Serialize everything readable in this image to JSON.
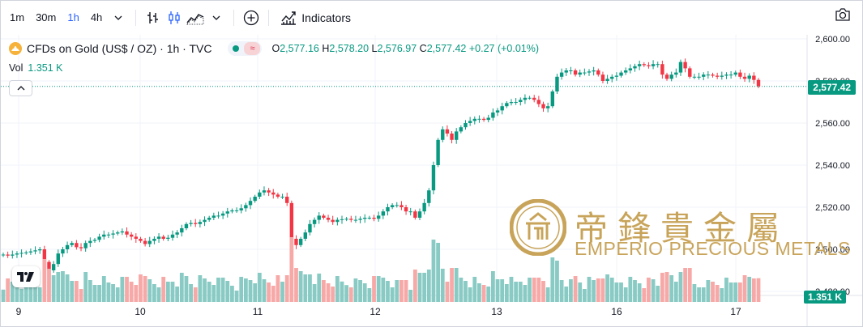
{
  "toolbar": {
    "timeframes": [
      "1m",
      "30m",
      "1h",
      "4h"
    ],
    "active_timeframe": "1h",
    "indicators_label": "Indicators"
  },
  "legend": {
    "symbol": "CFDs on Gold (US$ / OZ) · 1h · TVC",
    "open_label": "O",
    "open": "2,577.16",
    "high_label": "H",
    "high": "2,578.20",
    "low_label": "L",
    "low": "2,576.97",
    "close_label": "C",
    "close": "2,577.42",
    "change": "+0.27 (+0.01%)"
  },
  "volume": {
    "label": "Vol",
    "value": "1.351 K"
  },
  "price_axis": {
    "ticks": [
      "2,600.00",
      "2,580.00",
      "2,560.00",
      "2,540.00",
      "2,520.00",
      "2,500.00",
      "2,480.00"
    ],
    "current_price": "2,577.42",
    "volume_tag": "1.351 K"
  },
  "time_axis": {
    "labels": [
      "9",
      "10",
      "11",
      "12",
      "13",
      "16",
      "17"
    ]
  },
  "watermark": {
    "chinese": "帝鋒貴金屬",
    "english": "EMPERIO PRECIOUS METALS"
  },
  "colors": {
    "up": "#089981",
    "down": "#f23645",
    "accent": "#2962ff",
    "watermark": "#c8a45a"
  },
  "chart_data": {
    "type": "candlestick",
    "y_range": [
      2478,
      2605
    ],
    "series": [
      {
        "name": "CFDs on Gold (US$ / OZ)",
        "values": [
          2497.5,
          2497,
          2497.5,
          2498,
          2498.3,
          2498.5,
          2499,
          2499.5,
          2500,
          2494,
          2490,
          2493,
          2498,
          2500,
          2502,
          2503,
          2501,
          2500.5,
          2503,
          2504,
          2504.5,
          2506,
          2507,
          2507,
          2507.5,
          2508,
          2508.5,
          2507,
          2506,
          2505,
          2504,
          2502.5,
          2504,
          2505,
          2506,
          2505,
          2505.5,
          2507,
          2508,
          2510,
          2512,
          2512.5,
          2512,
          2513,
          2514,
          2515,
          2516,
          2516,
          2517,
          2518,
          2518.5,
          2518.5,
          2519.5,
          2521,
          2523,
          2525,
          2527,
          2528,
          2527,
          2526,
          2525,
          2525,
          2522,
          2505,
          2502,
          2505,
          2508,
          2512,
          2514,
          2516,
          2515,
          2514,
          2513,
          2514,
          2514.3,
          2514.5,
          2514,
          2514,
          2514.5,
          2515,
          2515,
          2514.5,
          2516,
          2518,
          2520,
          2521,
          2521,
          2520,
          2518,
          2518,
          2515,
          2518,
          2522,
          2528,
          2540,
          2552,
          2557,
          2555,
          2552,
          2556,
          2558,
          2560,
          2561,
          2562,
          2562,
          2561.5,
          2562.5,
          2565,
          2566,
          2568,
          2569.5,
          2570,
          2570,
          2571,
          2572,
          2572,
          2571,
          2569,
          2567,
          2568,
          2575,
          2582,
          2584,
          2585,
          2585,
          2583,
          2584,
          2584,
          2584.5,
          2585,
          2583,
          2580,
          2581,
          2582,
          2582.5,
          2584,
          2585,
          2586,
          2587,
          2588,
          2587.5,
          2587,
          2588,
          2588,
          2583,
          2581,
          2583,
          2584,
          2589,
          2586,
          2582,
          2582,
          2582,
          2583,
          2583,
          2582.5,
          2582,
          2582.5,
          2583,
          2583,
          2584,
          2582,
          2581,
          2582.5,
          2580.5,
          2577.42
        ]
      }
    ],
    "x_labels": [
      "9",
      "10",
      "11",
      "12",
      "13",
      "16",
      "17"
    ]
  }
}
